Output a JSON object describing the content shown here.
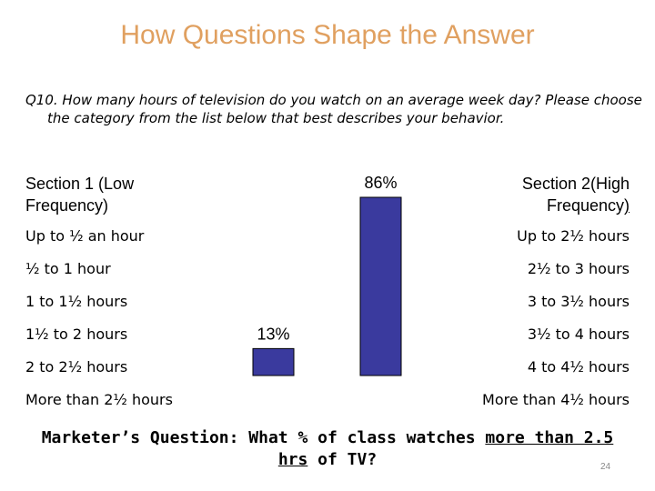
{
  "slide": {
    "title": "How Questions Shape the Answer",
    "question": "Q10. How many hours of television do you watch on an average week day? Please choose the category from the list below that best describes your behavior.",
    "section1_label": "Section 1 (Low Frequency)",
    "section2_label_main": "Section 2(High Frequency",
    "section2_label_tail": ")",
    "section1_categories": [
      "Up to ½ an hour",
      "½ to 1 hour",
      "1 to 1½ hours",
      "1½ to 2 hours",
      "2 to 2½ hours",
      "More than 2½ hours"
    ],
    "section2_categories": [
      "Up to 2½ hours",
      "2½ to 3 hours",
      "3 to 3½ hours",
      "3½ to 4 hours",
      "4 to 4½ hours",
      "More than 4½ hours"
    ],
    "footer_prefix": "Marketer’s Question: What % of class watches ",
    "footer_emph1": "more than 2.5",
    "footer_emph2": "hrs",
    "footer_suffix": " of TV?",
    "page_number": "24"
  },
  "colors": {
    "title": "#e0a060",
    "bar_fill": "#3a3a9e",
    "bar_stroke": "#000000"
  },
  "chart_data": {
    "type": "bar",
    "categories": [
      "Section 1: More than 2½ hours",
      "Section 2: Up to 2½ hours"
    ],
    "values": [
      13,
      86
    ],
    "data_labels": [
      "13%",
      "86%"
    ],
    "unit": "%",
    "ylim": [
      0,
      100
    ],
    "grid": false,
    "legend": "none"
  }
}
